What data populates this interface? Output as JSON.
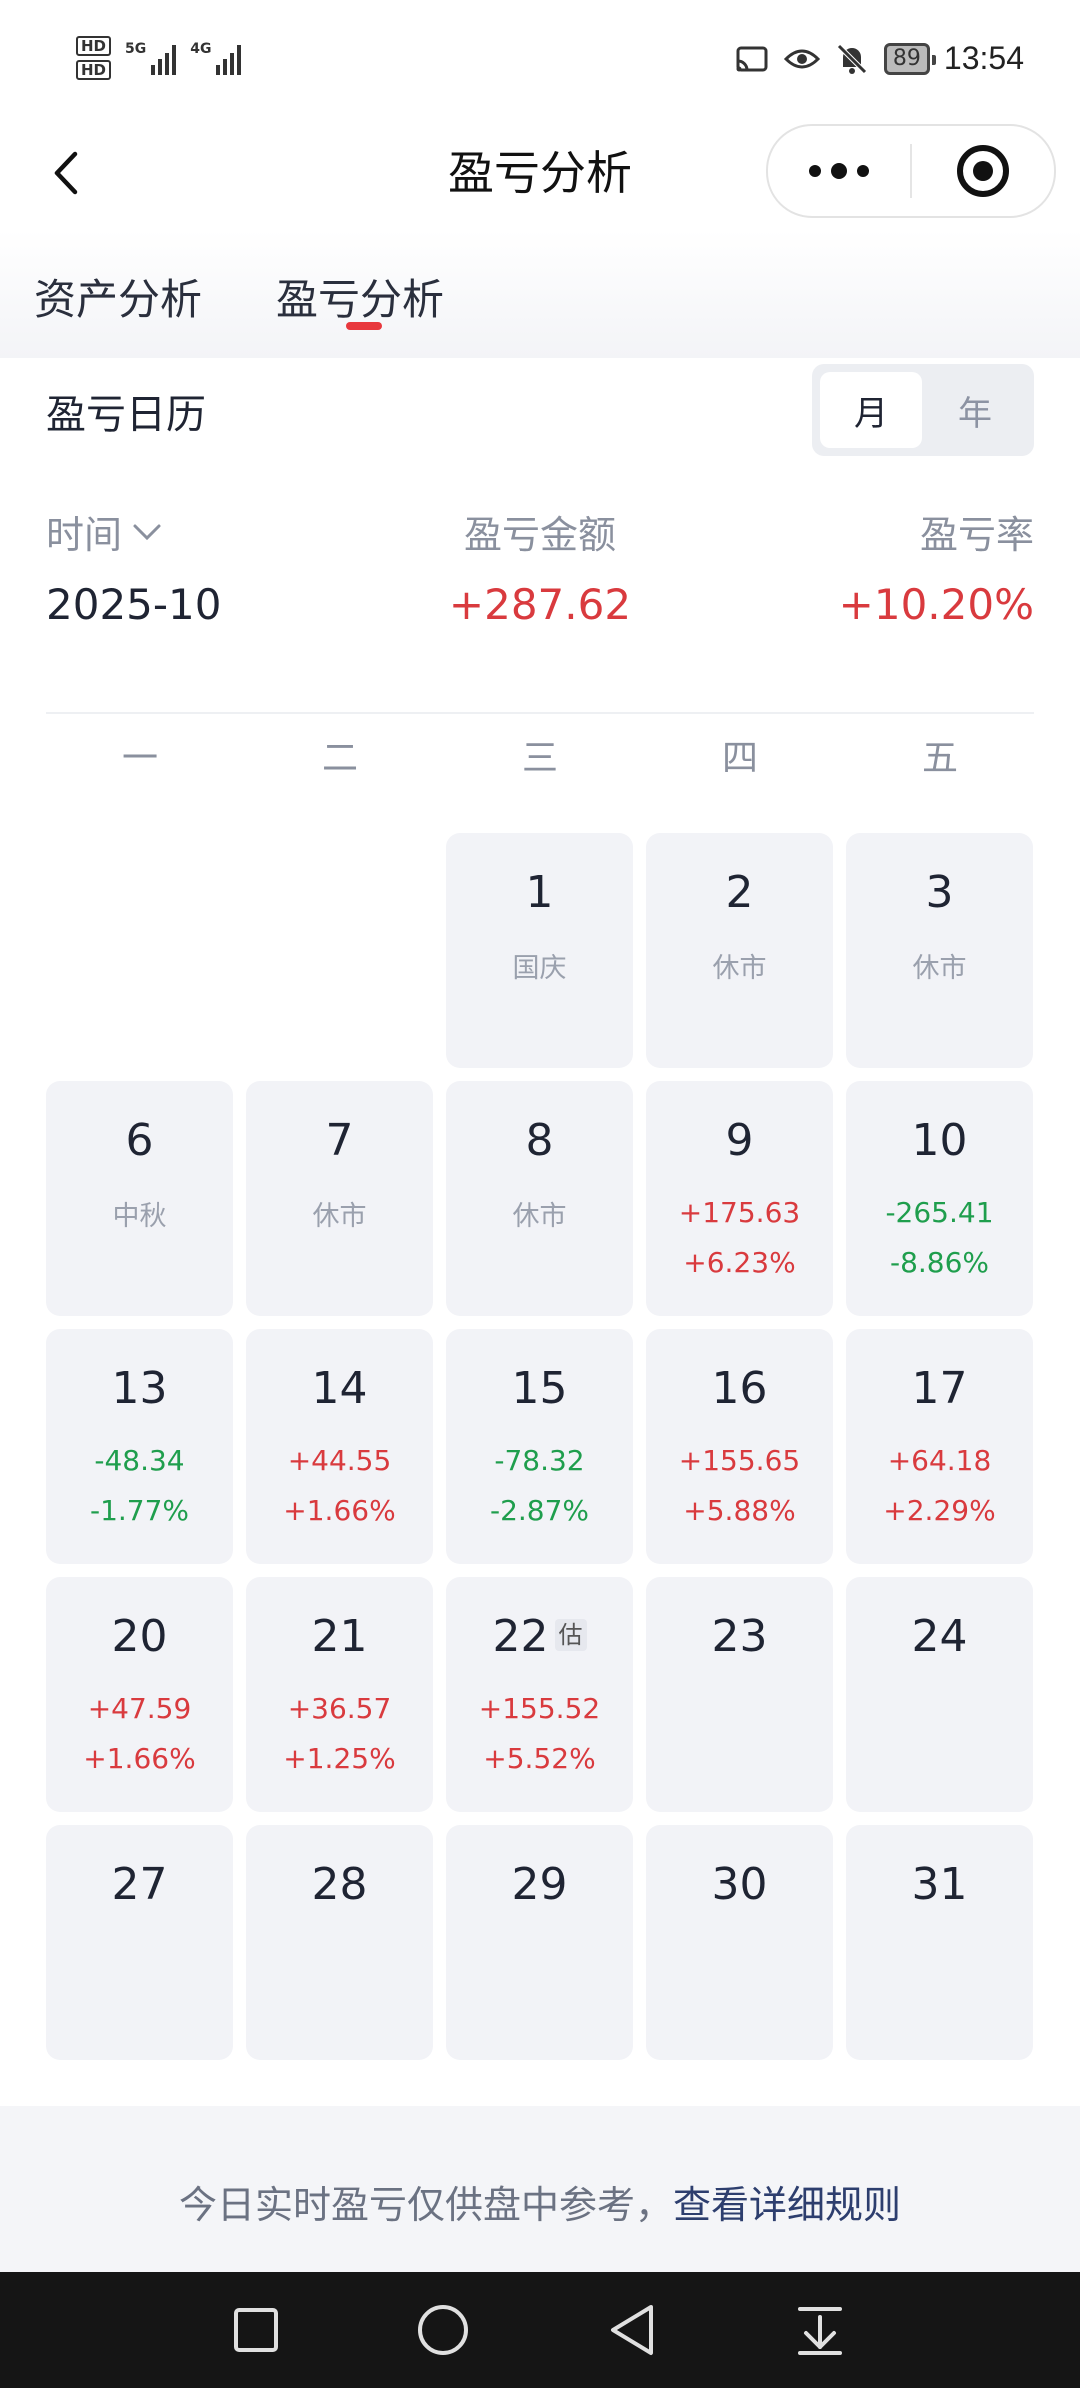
{
  "status_bar": {
    "time": "13:54",
    "battery": "89",
    "hd1": "HD",
    "hd2": "HD",
    "net1": "5G",
    "net2": "4G"
  },
  "header": {
    "title": "盈亏分析",
    "back_icon": "chevron-left-icon",
    "more_icon": "more-dots-icon",
    "close_icon": "target-circle-icon"
  },
  "tabs": [
    {
      "label": "资产分析",
      "active": false
    },
    {
      "label": "盈亏分析",
      "active": true
    }
  ],
  "calendar": {
    "title": "盈亏日历",
    "view_toggle": {
      "month": "月",
      "year": "年",
      "selected": "月"
    }
  },
  "summary": {
    "time_label": "时间",
    "time_value": "2025-10",
    "amount_label": "盈亏金额",
    "amount_value": "+287.62",
    "rate_label": "盈亏率",
    "rate_value": "+10.20%"
  },
  "weekdays": [
    "一",
    "二",
    "三",
    "四",
    "五"
  ],
  "days": [
    {
      "day": "1",
      "note": "国庆"
    },
    {
      "day": "2",
      "note": "休市"
    },
    {
      "day": "3",
      "note": "休市"
    },
    {
      "day": "6",
      "note": "中秋"
    },
    {
      "day": "7",
      "note": "休市"
    },
    {
      "day": "8",
      "note": "休市"
    },
    {
      "day": "9",
      "amount": "+175.63",
      "rate": "+6.23%"
    },
    {
      "day": "10",
      "amount": "-265.41",
      "rate": "-8.86%"
    },
    {
      "day": "13",
      "amount": "-48.34",
      "rate": "-1.77%"
    },
    {
      "day": "14",
      "amount": "+44.55",
      "rate": "+1.66%"
    },
    {
      "day": "15",
      "amount": "-78.32",
      "rate": "-2.87%"
    },
    {
      "day": "16",
      "amount": "+155.65",
      "rate": "+5.88%"
    },
    {
      "day": "17",
      "amount": "+64.18",
      "rate": "+2.29%"
    },
    {
      "day": "20",
      "amount": "+47.59",
      "rate": "+1.66%"
    },
    {
      "day": "21",
      "amount": "+36.57",
      "rate": "+1.25%"
    },
    {
      "day": "22",
      "amount": "+155.52",
      "rate": "+5.52%",
      "badge": "估"
    },
    {
      "day": "23"
    },
    {
      "day": "24"
    },
    {
      "day": "27"
    },
    {
      "day": "28"
    },
    {
      "day": "29"
    },
    {
      "day": "30"
    },
    {
      "day": "31"
    }
  ],
  "footer": {
    "text": "今日实时盈亏仅供盘中参考，",
    "link": "查看详细规则"
  },
  "colors": {
    "gain": "#d93a3e",
    "loss": "#1f9e4d",
    "accent": "#e8383d"
  }
}
